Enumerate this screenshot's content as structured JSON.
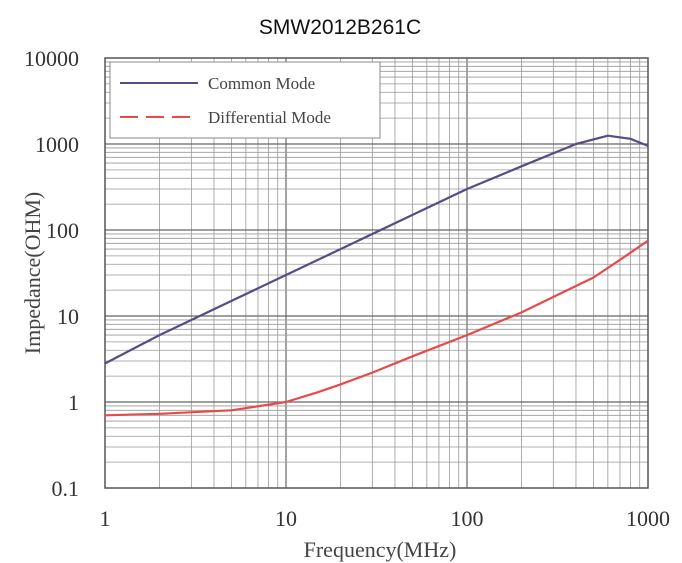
{
  "chart_data": {
    "type": "line",
    "title": "SMW2012B261C",
    "xlabel": "Frequency(MHz)",
    "ylabel": "Impedance(OHM)",
    "xscale": "log",
    "yscale": "log",
    "xlim": [
      1,
      1000
    ],
    "ylim": [
      0.1,
      10000
    ],
    "x_ticks": [
      "1",
      "10",
      "100",
      "1000"
    ],
    "y_ticks": [
      "0.1",
      "1",
      "10",
      "100",
      "1000",
      "10000"
    ],
    "grid": true,
    "legend_position": "top-left",
    "series": [
      {
        "name": "Common Mode",
        "color": "#5a4a86",
        "style": "solid",
        "x": [
          1,
          2,
          5,
          10,
          20,
          50,
          100,
          200,
          400,
          600,
          800,
          1000
        ],
        "y": [
          2.8,
          6,
          15,
          30,
          60,
          150,
          300,
          550,
          1000,
          1250,
          1150,
          950
        ]
      },
      {
        "name": "Differential Mode",
        "color": "#e84a4a",
        "style": "dashed",
        "x": [
          1,
          2,
          5,
          10,
          15,
          20,
          30,
          50,
          100,
          200,
          500,
          700,
          1000
        ],
        "y": [
          0.7,
          0.73,
          0.8,
          1.0,
          1.3,
          1.6,
          2.2,
          3.4,
          6,
          11,
          28,
          45,
          75
        ]
      }
    ]
  }
}
